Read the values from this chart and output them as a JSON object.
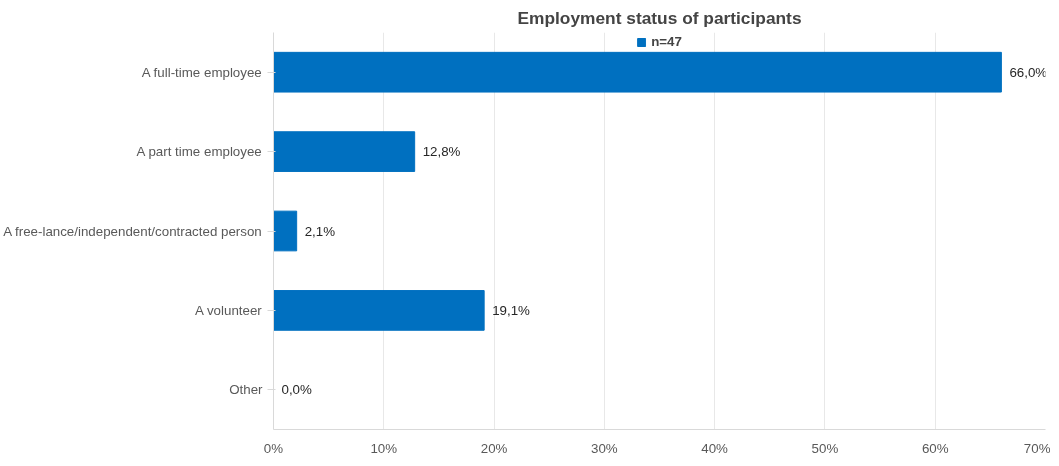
{
  "chart_data": {
    "type": "bar",
    "orientation": "horizontal",
    "title": "Employment status of participants",
    "categories": [
      "A full-time employee",
      "A part time employee",
      "A free-lance/independent/contracted person",
      "A volunteer",
      "Other"
    ],
    "series": [
      {
        "name": "n=47",
        "color": "#0070c0",
        "values": [
          66.0,
          12.8,
          2.1,
          19.1,
          0.0
        ],
        "value_labels": [
          "66,0%",
          "12,8%",
          "2,1%",
          "19,1%",
          "0,0%"
        ]
      }
    ],
    "xlim": [
      0,
      70
    ],
    "xticks": [
      {
        "value": 0,
        "label": "0%"
      },
      {
        "value": 10,
        "label": "10%"
      },
      {
        "value": 20,
        "label": "20%"
      },
      {
        "value": 30,
        "label": "30%"
      },
      {
        "value": 40,
        "label": "40%"
      },
      {
        "value": 50,
        "label": "50%"
      },
      {
        "value": 60,
        "label": "60%"
      },
      {
        "value": 70,
        "label": "70%"
      }
    ],
    "grid": "x",
    "legend": "top"
  }
}
